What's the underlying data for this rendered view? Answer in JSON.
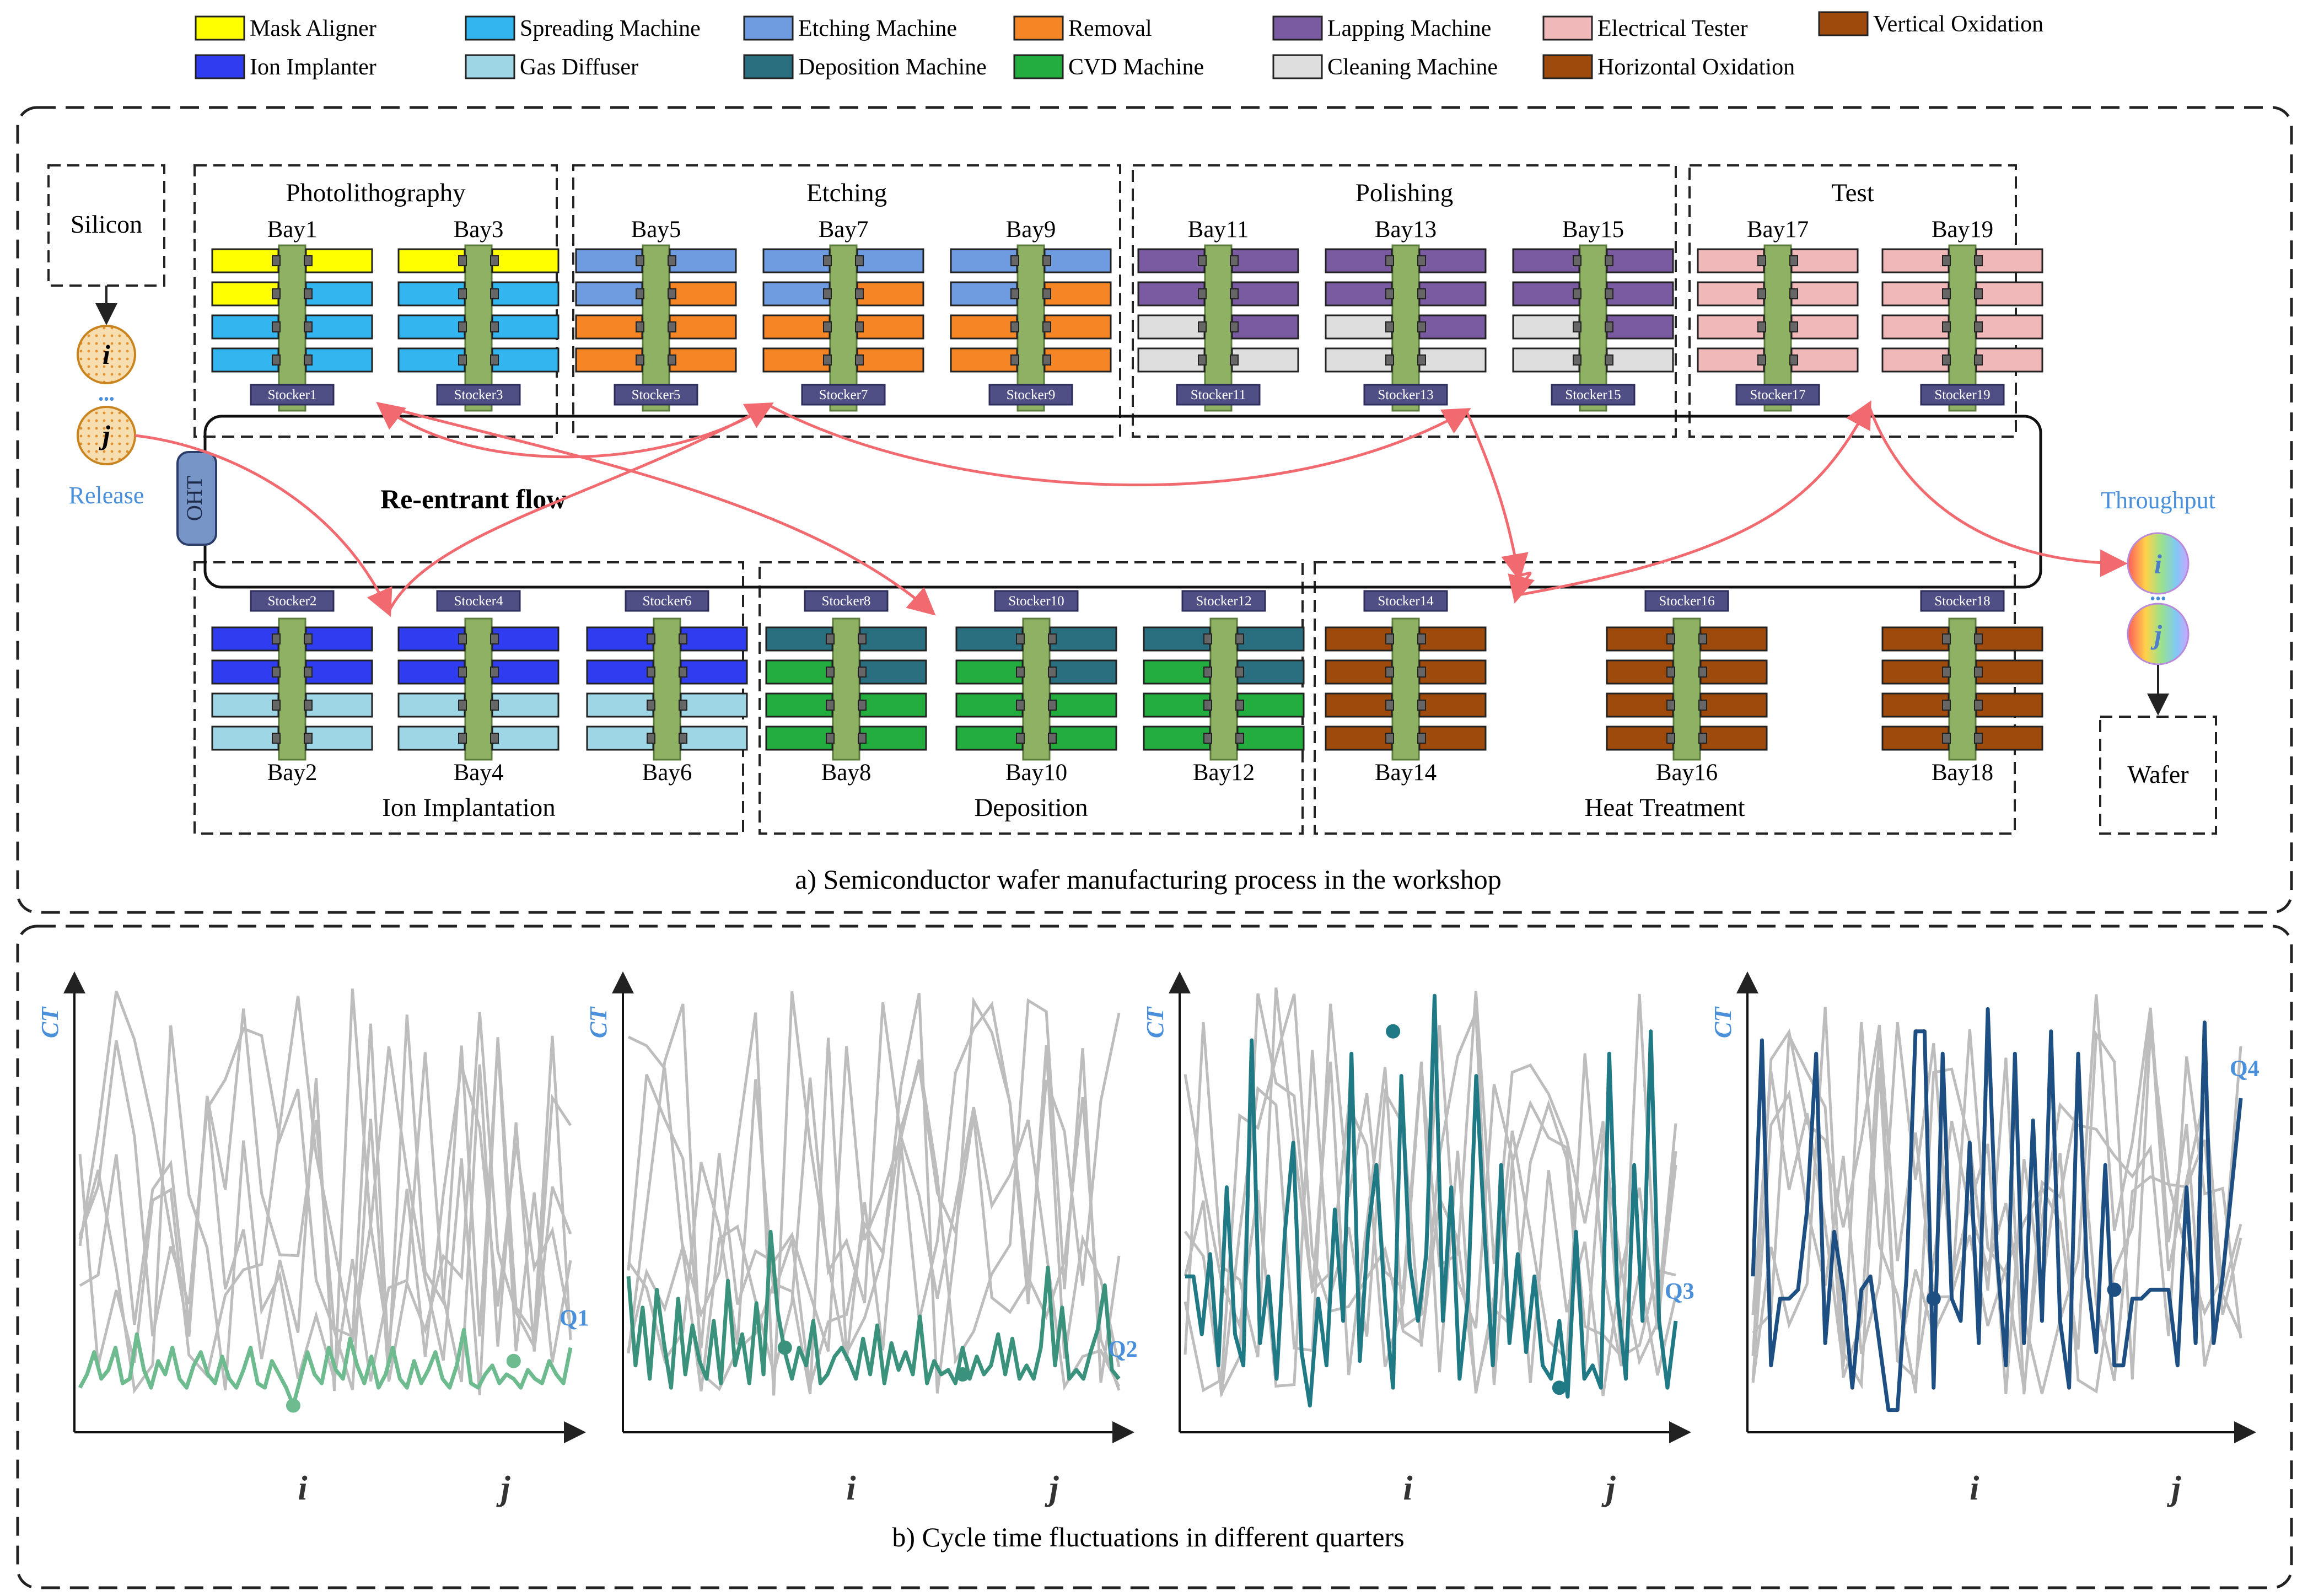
{
  "legend": [
    {
      "label": "Mask Aligner",
      "color": "#ffff00"
    },
    {
      "label": "Ion Implanter",
      "color": "#2f3cf0"
    },
    {
      "label": "Spreading Machine",
      "color": "#33b5f0"
    },
    {
      "label": "Gas Diffuser",
      "color": "#9fd6e6"
    },
    {
      "label": "Etching Machine",
      "color": "#6f9be0"
    },
    {
      "label": "Deposition Machine",
      "color": "#2a6f80"
    },
    {
      "label": "Removal",
      "color": "#f58525"
    },
    {
      "label": "CVD Machine",
      "color": "#22ad3e"
    },
    {
      "label": "Lapping Machine",
      "color": "#7a5aa0"
    },
    {
      "label": "Cleaning Machine",
      "color": "#dedede"
    },
    {
      "label": "Electrical Tester",
      "color": "#f0b8b8"
    },
    {
      "label": "Horizontal Oxidation",
      "color": "#9e4a0c"
    },
    {
      "label": "Vertical Oxidation",
      "color": "#9e4a0c"
    }
  ],
  "part_a": {
    "caption": "a) Semiconductor wafer manufacturing process in the workshop",
    "silicon": "Silicon",
    "wafer": "Wafer",
    "release": "Release",
    "throughput": "Throughput",
    "oht": "OHT",
    "reentrant": "Re-entrant flow",
    "job_i": "i",
    "job_j": "j",
    "ellipsis": "•••",
    "groups": [
      {
        "name": "Photolithography",
        "bays": [
          {
            "label": "Bay1",
            "stocker": "Stocker1",
            "left": [
              "#ffff00",
              "#ffff00",
              "#33b5f0",
              "#33b5f0"
            ],
            "right": [
              "#ffff00",
              "#33b5f0",
              "#33b5f0",
              "#33b5f0"
            ]
          },
          {
            "label": "Bay3",
            "stocker": "Stocker3",
            "left": [
              "#ffff00",
              "#33b5f0",
              "#33b5f0",
              "#33b5f0"
            ],
            "right": [
              "#ffff00",
              "#33b5f0",
              "#33b5f0",
              "#33b5f0"
            ]
          }
        ]
      },
      {
        "name": "Etching",
        "bays": [
          {
            "label": "Bay5",
            "stocker": "Stocker5",
            "left": [
              "#6f9be0",
              "#6f9be0",
              "#f58525",
              "#f58525"
            ],
            "right": [
              "#6f9be0",
              "#f58525",
              "#f58525",
              "#f58525"
            ]
          },
          {
            "label": "Bay7",
            "stocker": "Stocker7",
            "left": [
              "#6f9be0",
              "#6f9be0",
              "#f58525",
              "#f58525"
            ],
            "right": [
              "#6f9be0",
              "#f58525",
              "#f58525",
              "#f58525"
            ]
          },
          {
            "label": "Bay9",
            "stocker": "Stocker9",
            "left": [
              "#6f9be0",
              "#6f9be0",
              "#f58525",
              "#f58525"
            ],
            "right": [
              "#6f9be0",
              "#f58525",
              "#f58525",
              "#f58525"
            ]
          }
        ]
      },
      {
        "name": "Polishing",
        "bays": [
          {
            "label": "Bay11",
            "stocker": "Stocker11",
            "left": [
              "#7a5aa0",
              "#7a5aa0",
              "#dedede",
              "#dedede"
            ],
            "right": [
              "#7a5aa0",
              "#7a5aa0",
              "#7a5aa0",
              "#dedede"
            ]
          },
          {
            "label": "Bay13",
            "stocker": "Stocker13",
            "left": [
              "#7a5aa0",
              "#7a5aa0",
              "#dedede",
              "#dedede"
            ],
            "right": [
              "#7a5aa0",
              "#7a5aa0",
              "#7a5aa0",
              "#dedede"
            ]
          },
          {
            "label": "Bay15",
            "stocker": "Stocker15",
            "left": [
              "#7a5aa0",
              "#7a5aa0",
              "#dedede",
              "#dedede"
            ],
            "right": [
              "#7a5aa0",
              "#7a5aa0",
              "#7a5aa0",
              "#dedede"
            ]
          }
        ]
      },
      {
        "name": "Test",
        "bays": [
          {
            "label": "Bay17",
            "stocker": "Stocker17",
            "left": [
              "#f0b8b8",
              "#f0b8b8",
              "#f0b8b8",
              "#f0b8b8"
            ],
            "right": [
              "#f0b8b8",
              "#f0b8b8",
              "#f0b8b8",
              "#f0b8b8"
            ]
          },
          {
            "label": "Bay19",
            "stocker": "Stocker19",
            "left": [
              "#f0b8b8",
              "#f0b8b8",
              "#f0b8b8",
              "#f0b8b8"
            ],
            "right": [
              "#f0b8b8",
              "#f0b8b8",
              "#f0b8b8",
              "#f0b8b8"
            ]
          }
        ]
      },
      {
        "name": "Ion Implantation",
        "bays": [
          {
            "label": "Bay2",
            "stocker": "Stocker2",
            "left": [
              "#2f3cf0",
              "#2f3cf0",
              "#9fd6e6",
              "#9fd6e6"
            ],
            "right": [
              "#2f3cf0",
              "#2f3cf0",
              "#9fd6e6",
              "#9fd6e6"
            ]
          },
          {
            "label": "Bay4",
            "stocker": "Stocker4",
            "left": [
              "#2f3cf0",
              "#2f3cf0",
              "#9fd6e6",
              "#9fd6e6"
            ],
            "right": [
              "#2f3cf0",
              "#2f3cf0",
              "#9fd6e6",
              "#9fd6e6"
            ]
          },
          {
            "label": "Bay6",
            "stocker": "Stocker6",
            "left": [
              "#2f3cf0",
              "#2f3cf0",
              "#9fd6e6",
              "#9fd6e6"
            ],
            "right": [
              "#2f3cf0",
              "#2f3cf0",
              "#9fd6e6",
              "#9fd6e6"
            ]
          }
        ]
      },
      {
        "name": "Deposition",
        "bays": [
          {
            "label": "Bay8",
            "stocker": "Stocker8",
            "left": [
              "#2a6f80",
              "#22ad3e",
              "#22ad3e",
              "#22ad3e"
            ],
            "right": [
              "#2a6f80",
              "#2a6f80",
              "#22ad3e",
              "#22ad3e"
            ]
          },
          {
            "label": "Bay10",
            "stocker": "Stocker10",
            "left": [
              "#2a6f80",
              "#22ad3e",
              "#22ad3e",
              "#22ad3e"
            ],
            "right": [
              "#2a6f80",
              "#2a6f80",
              "#22ad3e",
              "#22ad3e"
            ]
          },
          {
            "label": "Bay12",
            "stocker": "Stocker12",
            "left": [
              "#2a6f80",
              "#22ad3e",
              "#22ad3e",
              "#22ad3e"
            ],
            "right": [
              "#2a6f80",
              "#2a6f80",
              "#22ad3e",
              "#22ad3e"
            ]
          }
        ]
      },
      {
        "name": "Heat Treatment",
        "bays": [
          {
            "label": "Bay14",
            "stocker": "Stocker14",
            "left": [
              "#9e4a0c",
              "#9e4a0c",
              "#9e4a0c",
              "#9e4a0c"
            ],
            "right": [
              "#9e4a0c",
              "#9e4a0c",
              "#9e4a0c",
              "#9e4a0c"
            ]
          },
          {
            "label": "Bay16",
            "stocker": "Stocker16",
            "left": [
              "#9e4a0c",
              "#9e4a0c",
              "#9e4a0c",
              "#9e4a0c"
            ],
            "right": [
              "#9e4a0c",
              "#9e4a0c",
              "#9e4a0c",
              "#9e4a0c"
            ]
          },
          {
            "label": "Bay18",
            "stocker": "Stocker18",
            "left": [
              "#9e4a0c",
              "#9e4a0c",
              "#9e4a0c",
              "#9e4a0c"
            ],
            "right": [
              "#9e4a0c",
              "#9e4a0c",
              "#9e4a0c",
              "#9e4a0c"
            ]
          }
        ]
      }
    ]
  },
  "part_b": {
    "caption": "b) Cycle time fluctuations in different quarters",
    "ylabel": "CT",
    "x_ticks": [
      "i",
      "j"
    ]
  },
  "chart_data": [
    {
      "type": "line",
      "title": "Q1",
      "ylabel": "CT",
      "xlabel": "",
      "x_ticks": [
        "i",
        "j"
      ],
      "ylim": [
        0,
        10
      ],
      "color": "#6dbb8f",
      "series": [
        {
          "name": "Q1",
          "values": [
            1.0,
            1.3,
            1.8,
            1.2,
            1.4,
            1.9,
            1.1,
            1.2,
            2.2,
            1.4,
            1.0,
            1.6,
            1.3,
            1.9,
            1.2,
            1.0,
            1.5,
            1.8,
            1.3,
            1.1,
            1.7,
            1.2,
            1.0,
            1.4,
            1.9,
            1.1,
            1.0,
            1.6,
            1.3,
            1.0,
            0.6,
            1.2,
            1.8,
            1.3,
            1.1,
            1.9,
            1.4,
            1.2,
            2.1,
            1.5,
            1.1,
            1.7,
            1.0,
            1.3,
            1.9,
            1.2,
            1.0,
            1.6,
            1.1,
            1.4,
            1.8,
            1.2,
            1.0,
            1.5,
            2.3,
            1.1,
            1.0,
            1.3,
            1.5,
            1.1,
            1.3,
            1.2,
            1.0,
            1.4,
            1.2,
            1.1,
            1.6,
            1.3,
            1.1,
            1.9
          ]
        }
      ],
      "markers": [
        {
          "x": 30,
          "y": 0.6
        },
        {
          "x": 61,
          "y": 1.6
        }
      ]
    },
    {
      "type": "line",
      "title": "Q2",
      "ylabel": "CT",
      "xlabel": "",
      "x_ticks": [
        "i",
        "j"
      ],
      "ylim": [
        0,
        10
      ],
      "color": "#3a917c",
      "series": [
        {
          "name": "Q2",
          "values": [
            3.5,
            1.5,
            2.8,
            1.2,
            3.2,
            2.0,
            1.0,
            3.0,
            1.3,
            2.4,
            1.6,
            1.2,
            2.5,
            1.1,
            3.4,
            1.5,
            2.2,
            1.1,
            2.9,
            1.3,
            4.5,
            2.7,
            1.8,
            1.2,
            1.9,
            1.5,
            2.5,
            1.1,
            1.3,
            1.7,
            1.9,
            1.6,
            1.2,
            2.1,
            1.3,
            2.4,
            1.1,
            2.0,
            1.4,
            1.8,
            1.3,
            2.6,
            1.1,
            1.6,
            1.3,
            1.4,
            1.1,
            1.9,
            1.2,
            1.7,
            1.3,
            1.5,
            2.2,
            1.3,
            2.1,
            1.2,
            1.5,
            1.2,
            1.9,
            3.7,
            1.5,
            2.8,
            1.2,
            1.4,
            1.2,
            1.8,
            2.3,
            3.3,
            1.4,
            1.2
          ]
        }
      ],
      "markers": [
        {
          "x": 22,
          "y": 1.9
        },
        {
          "x": 47,
          "y": 1.3
        }
      ]
    },
    {
      "type": "line",
      "title": "Q3",
      "ylabel": "CT",
      "xlabel": "",
      "x_ticks": [
        "i",
        "j"
      ],
      "ylim": [
        0,
        10
      ],
      "color": "#1f7a86",
      "series": [
        {
          "name": "Q3",
          "values": [
            3.5,
            3.5,
            2.2,
            4.0,
            1.5,
            5.5,
            2.2,
            1.5,
            8.8,
            2.0,
            3.5,
            1.2,
            4.5,
            6.5,
            1.8,
            0.6,
            3.0,
            1.5,
            5.0,
            2.5,
            8.5,
            1.6,
            4.5,
            6.0,
            3.0,
            1.0,
            8.0,
            3.8,
            2.5,
            4.0,
            9.8,
            2.5,
            5.5,
            1.2,
            3.0,
            8.0,
            4.5,
            1.5,
            6.0,
            2.0,
            4.0,
            1.8,
            3.5,
            1.5,
            1.2,
            2.5,
            0.8,
            4.5,
            1.2,
            1.5,
            1.0,
            8.5,
            3.0,
            1.2,
            6.0,
            2.5,
            9.0,
            2.5,
            1.0,
            2.5
          ]
        }
      ],
      "markers": [
        {
          "x": 25,
          "y": 9.0
        },
        {
          "x": 45,
          "y": 1.0
        }
      ]
    },
    {
      "type": "line",
      "title": "Q4",
      "ylabel": "CT",
      "xlabel": "",
      "x_ticks": [
        "i",
        "j"
      ],
      "ylim": [
        0,
        10
      ],
      "color": "#1d4f82",
      "series": [
        {
          "name": "Q4",
          "values": [
            3.5,
            8.8,
            1.5,
            3.0,
            3.0,
            3.2,
            5.0,
            8.5,
            2.0,
            4.5,
            3.2,
            1.0,
            3.2,
            3.5,
            2.0,
            0.5,
            0.5,
            3.5,
            9.0,
            9.0,
            1.0,
            8.5,
            3.0,
            2.5,
            6.5,
            2.0,
            9.5,
            4.0,
            1.5,
            8.5,
            2.0,
            7.0,
            2.5,
            9.0,
            2.5,
            1.0,
            8.5,
            3.5,
            1.8,
            6.0,
            1.5,
            1.5,
            3.0,
            3.0,
            3.2,
            3.2,
            3.2,
            1.5,
            5.5,
            2.0,
            9.2,
            2.0,
            3.5,
            5.5,
            7.5
          ]
        }
      ],
      "markers": [
        {
          "x": 20,
          "y": 3.0
        },
        {
          "x": 40,
          "y": 3.2
        }
      ]
    }
  ]
}
